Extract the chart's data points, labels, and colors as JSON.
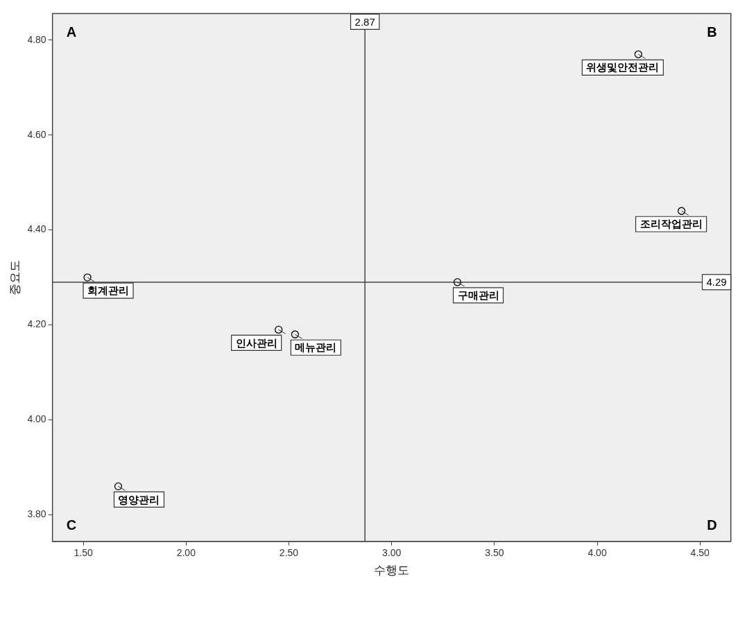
{
  "chart_data": {
    "type": "scatter",
    "xlabel": "수행도",
    "ylabel": "중요도",
    "x": [
      1.52,
      1.67,
      2.45,
      2.53,
      3.32,
      4.2,
      4.41
    ],
    "values": [
      4.3,
      3.86,
      4.19,
      4.18,
      4.29,
      4.77,
      4.44
    ],
    "color": "#000000",
    "marker": "circle",
    "xlim": [
      1.35,
      4.65
    ],
    "ylim": [
      3.744,
      4.856
    ],
    "xticks": [
      {
        "value": 1.5,
        "label": "1.50"
      },
      {
        "value": 2,
        "label": "2.00"
      },
      {
        "value": 2.5,
        "label": "2.50"
      },
      {
        "value": 3,
        "label": "3.00"
      },
      {
        "value": 3.5,
        "label": "3.50"
      },
      {
        "value": 4,
        "label": "4.00"
      },
      {
        "value": 4.5,
        "label": "4.50"
      }
    ],
    "yticks": [
      {
        "value": 3.8,
        "label": "3.80"
      },
      {
        "value": 4,
        "label": "4.00"
      },
      {
        "value": 4.2,
        "label": "4.20"
      },
      {
        "value": 4.4,
        "label": "4.40"
      },
      {
        "value": 4.6,
        "label": "4.60"
      },
      {
        "value": 4.8,
        "label": "4.80"
      }
    ],
    "ref_lines": [
      {
        "axis": "x",
        "value": 2.87,
        "label": "2.87"
      },
      {
        "axis": "y",
        "value": 4.29,
        "label": "4.29"
      }
    ],
    "annotations": [
      "A",
      "B",
      "C",
      "D",
      {
        "text": "회계관리",
        "x": 1.52,
        "y": 4.3
      },
      {
        "text": "영양관리",
        "x": 1.67,
        "y": 3.86
      },
      {
        "text": "메뉴관리",
        "x": 2.53,
        "y": 4.18
      },
      {
        "text": "인사관리",
        "x": 2.45,
        "y": 4.19
      },
      {
        "text": "구매관리",
        "x": 3.32,
        "y": 4.29
      },
      {
        "text": "위생및안전관리",
        "x": 4.2,
        "y": 4.77
      },
      {
        "text": "조리작업관리",
        "x": 4.41,
        "y": 4.44
      }
    ]
  }
}
